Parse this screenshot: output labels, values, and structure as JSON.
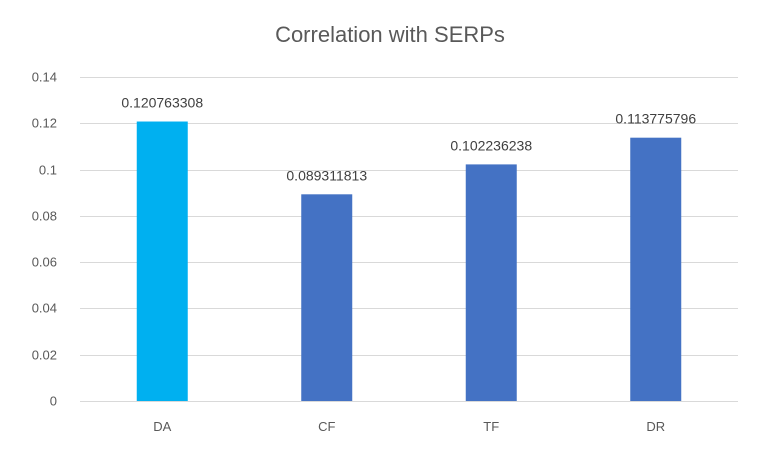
{
  "chart_data": {
    "type": "bar",
    "title": "Correlation with SERPs",
    "xlabel": "",
    "ylabel": "",
    "categories": [
      "DA",
      "CF",
      "TF",
      "DR"
    ],
    "values": [
      0.120763308,
      0.089311813,
      0.102236238,
      0.113775796
    ],
    "data_labels": [
      "0.120763308",
      "0.089311813",
      "0.102236238",
      "0.113775796"
    ],
    "ylim": [
      0,
      0.14
    ],
    "yticks": [
      0,
      0.02,
      0.04,
      0.06,
      0.08,
      0.1,
      0.12,
      0.14
    ],
    "ytick_labels": [
      "0",
      "0.02",
      "0.04",
      "0.06",
      "0.08",
      "0.1",
      "0.12",
      "0.14"
    ],
    "grid": true,
    "legend": "none",
    "bar_colors": [
      "#00b0f0",
      "#4472c4",
      "#4472c4",
      "#4472c4"
    ]
  }
}
